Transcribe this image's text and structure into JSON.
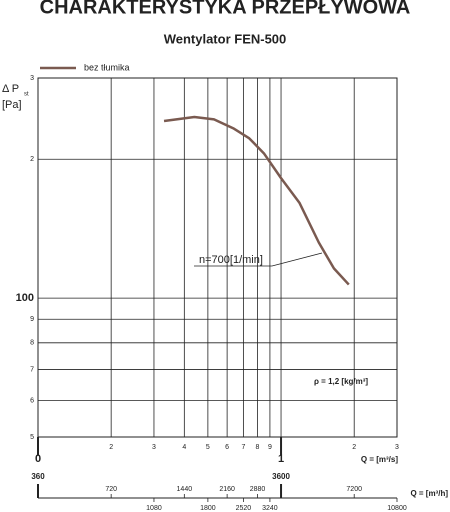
{
  "chart_data": {
    "type": "line",
    "title": "CHARAKTERYSTYKA PRZEPŁYWOWA",
    "subtitle": "Wentylator FEN-500",
    "y_label": "Δ P",
    "y_label_sub": "st",
    "y_unit": "[Pa]",
    "x_label": "Q = [m³/s]",
    "x2_label": "Q = [m³/h]",
    "annotations": [
      "n=700[1/min]",
      "ρ = 1,2 [kg/m³]"
    ],
    "log_x": true,
    "log_y": true,
    "grid": true,
    "title_color": "#b5541c",
    "subtitle_color": "#b5541c",
    "x": [
      0.33,
      0.44,
      0.53,
      0.64,
      0.74,
      0.85,
      1.0,
      1.19,
      1.43,
      1.65,
      1.9
    ],
    "series": [
      {
        "name": "bez tłumika",
        "color": "#7a5a50",
        "values": [
          242,
          247,
          244,
          233,
          222,
          206,
          182,
          161,
          132,
          116,
          107
        ]
      }
    ],
    "xlim": [
      0.1,
      3
    ],
    "xticks": [
      {
        "value": 0.1,
        "label": "0"
      },
      {
        "value": 0.2,
        "label": "2"
      },
      {
        "value": 0.3,
        "label": "3"
      },
      {
        "value": 0.4,
        "label": "4"
      },
      {
        "value": 0.5,
        "label": "5"
      },
      {
        "value": 0.6,
        "label": "6"
      },
      {
        "value": 0.7,
        "label": "7"
      },
      {
        "value": 0.8,
        "label": "8"
      },
      {
        "value": 0.9,
        "label": "9"
      },
      1,
      2,
      3
    ],
    "ylim": [
      50,
      300
    ],
    "yticks": [
      {
        "value": 50,
        "label": "5"
      },
      {
        "value": 60,
        "label": "6"
      },
      {
        "value": 70,
        "label": "7"
      },
      {
        "value": 80,
        "label": "8"
      },
      {
        "value": 90,
        "label": "9"
      },
      100,
      {
        "value": 200,
        "label": "2"
      },
      {
        "value": 300,
        "label": "3"
      }
    ],
    "x2lim": [
      360,
      10800
    ],
    "x2ticks": [
      360,
      720,
      1080,
      1440,
      1800,
      2160,
      2520,
      2880,
      3240,
      3600,
      7200,
      10800
    ]
  }
}
